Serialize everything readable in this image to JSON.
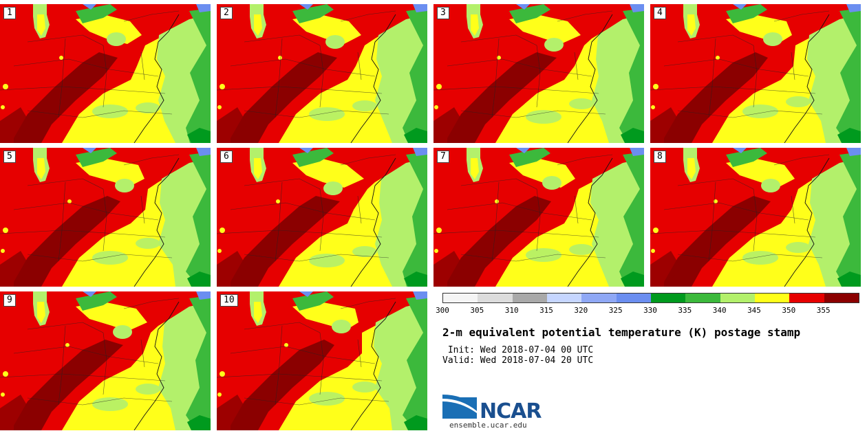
{
  "panels": [
    {
      "label": "1"
    },
    {
      "label": "2"
    },
    {
      "label": "3"
    },
    {
      "label": "4"
    },
    {
      "label": "5"
    },
    {
      "label": "6"
    },
    {
      "label": "7"
    },
    {
      "label": "8"
    },
    {
      "label": "9"
    },
    {
      "label": "10"
    }
  ],
  "colorbar": {
    "colors": [
      "#f5f5f5",
      "#dcdcdc",
      "#a9a9a9",
      "#c6d6ff",
      "#8fa8f5",
      "#6b8ef0",
      "#009a1e",
      "#3cb93c",
      "#b3f06b",
      "#ffff1a",
      "#e60000",
      "#8b0000"
    ],
    "tick_labels": [
      "300",
      "305",
      "310",
      "315",
      "320",
      "325",
      "330",
      "335",
      "340",
      "345",
      "350",
      "355"
    ]
  },
  "title": "2-m equivalent potential temperature (K) postage stamp",
  "init": " Init: Wed 2018-07-04 00 UTC",
  "valid": "Valid: Wed 2018-07-04 20 UTC",
  "logo_text": "NCAR",
  "site": "ensemble.ucar.edu"
}
